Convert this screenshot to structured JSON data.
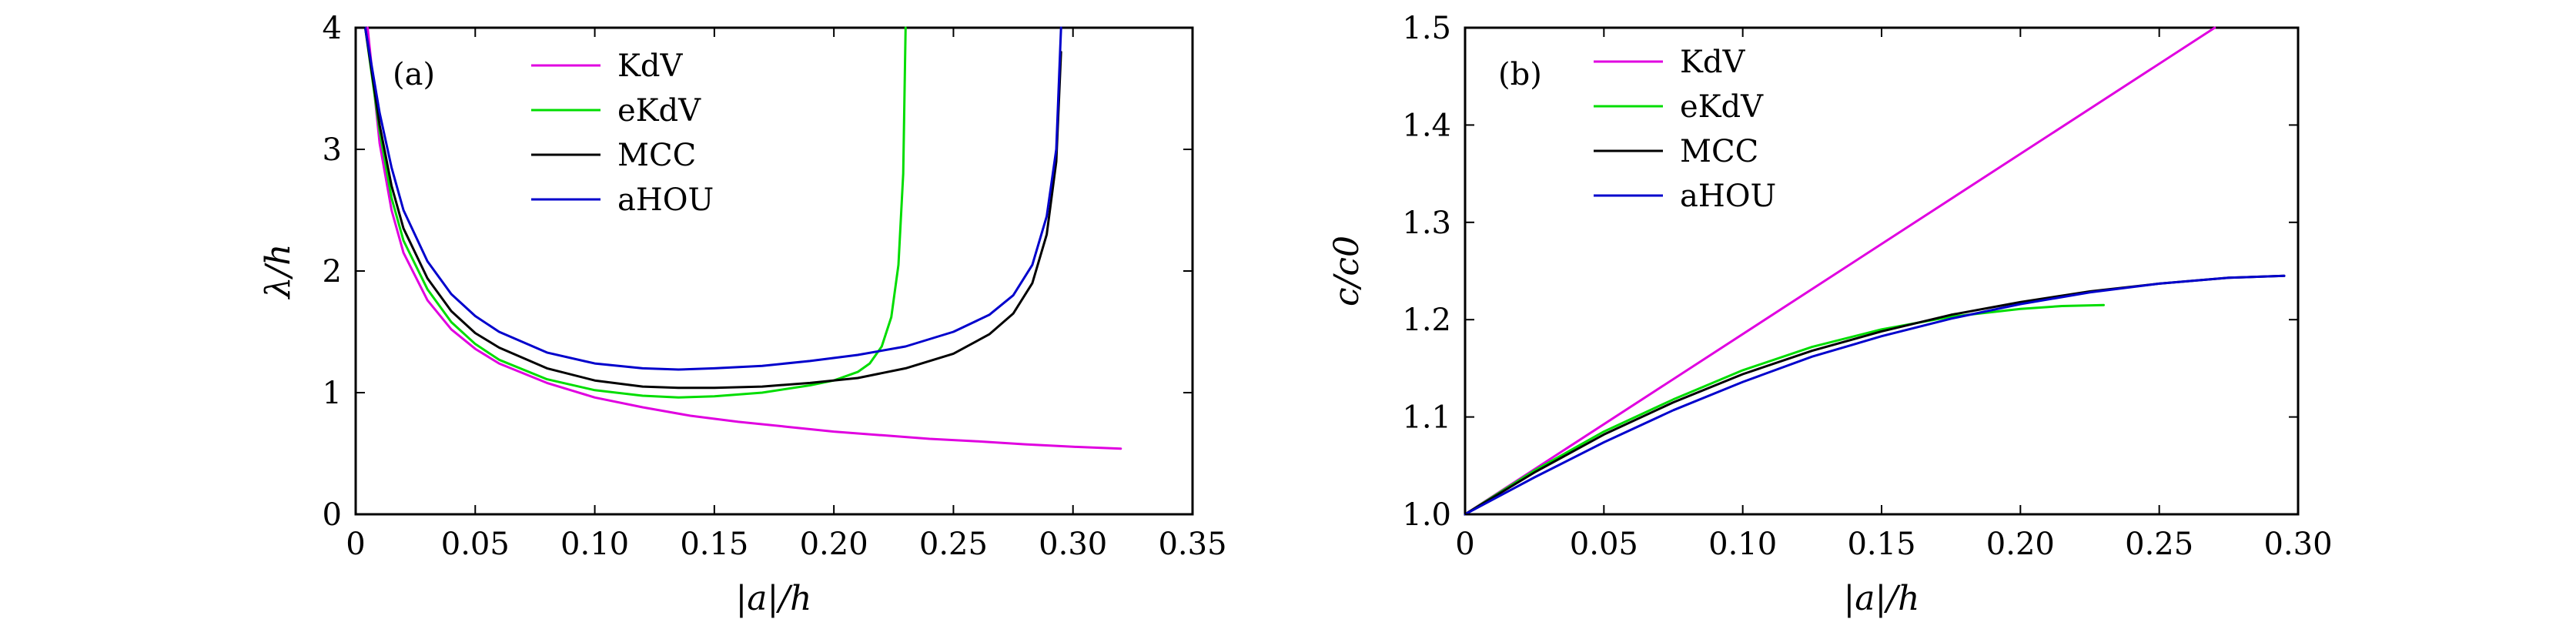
{
  "chart_data": [
    {
      "panel": "(a)",
      "type": "line",
      "xlabel": "|a|/h",
      "ylabel": "λ/h",
      "xlim": [
        0,
        0.35
      ],
      "ylim": [
        0,
        4
      ],
      "xticks": [
        "0",
        "0.05",
        "0.10",
        "0.15",
        "0.20",
        "0.25",
        "0.30",
        "0.35"
      ],
      "yticks": [
        "0",
        "1",
        "2",
        "3",
        "4"
      ],
      "grid": false,
      "legend_position": "top-center",
      "series": [
        {
          "name": "KdV",
          "color": "#e000e0",
          "points": [
            [
              0.005,
              4.0
            ],
            [
              0.01,
              3.05
            ],
            [
              0.015,
              2.5
            ],
            [
              0.02,
              2.15
            ],
            [
              0.03,
              1.76
            ],
            [
              0.04,
              1.52
            ],
            [
              0.05,
              1.36
            ],
            [
              0.06,
              1.24
            ],
            [
              0.08,
              1.08
            ],
            [
              0.1,
              0.96
            ],
            [
              0.12,
              0.88
            ],
            [
              0.14,
              0.81
            ],
            [
              0.16,
              0.76
            ],
            [
              0.18,
              0.72
            ],
            [
              0.2,
              0.68
            ],
            [
              0.22,
              0.65
            ],
            [
              0.24,
              0.62
            ],
            [
              0.26,
              0.6
            ],
            [
              0.28,
              0.575
            ],
            [
              0.3,
              0.555
            ],
            [
              0.32,
              0.54
            ]
          ]
        },
        {
          "name": "eKdV",
          "color": "#00dd00",
          "points": [
            [
              0.004,
              4.0
            ],
            [
              0.01,
              3.15
            ],
            [
              0.015,
              2.6
            ],
            [
              0.02,
              2.25
            ],
            [
              0.03,
              1.85
            ],
            [
              0.04,
              1.58
            ],
            [
              0.05,
              1.4
            ],
            [
              0.06,
              1.27
            ],
            [
              0.08,
              1.11
            ],
            [
              0.1,
              1.02
            ],
            [
              0.12,
              0.975
            ],
            [
              0.135,
              0.96
            ],
            [
              0.15,
              0.97
            ],
            [
              0.17,
              1.0
            ],
            [
              0.19,
              1.06
            ],
            [
              0.2,
              1.1
            ],
            [
              0.21,
              1.17
            ],
            [
              0.215,
              1.24
            ],
            [
              0.22,
              1.38
            ],
            [
              0.224,
              1.62
            ],
            [
              0.227,
              2.05
            ],
            [
              0.229,
              2.8
            ],
            [
              0.23,
              4.0
            ]
          ]
        },
        {
          "name": "MCC",
          "color": "#000000",
          "points": [
            [
              0.004,
              4.0
            ],
            [
              0.01,
              3.2
            ],
            [
              0.015,
              2.7
            ],
            [
              0.02,
              2.35
            ],
            [
              0.03,
              1.94
            ],
            [
              0.04,
              1.67
            ],
            [
              0.05,
              1.49
            ],
            [
              0.06,
              1.37
            ],
            [
              0.08,
              1.2
            ],
            [
              0.1,
              1.1
            ],
            [
              0.12,
              1.05
            ],
            [
              0.135,
              1.04
            ],
            [
              0.15,
              1.04
            ],
            [
              0.17,
              1.05
            ],
            [
              0.19,
              1.08
            ],
            [
              0.21,
              1.12
            ],
            [
              0.23,
              1.2
            ],
            [
              0.25,
              1.32
            ],
            [
              0.265,
              1.48
            ],
            [
              0.275,
              1.65
            ],
            [
              0.283,
              1.9
            ],
            [
              0.289,
              2.3
            ],
            [
              0.293,
              2.9
            ],
            [
              0.295,
              3.8
            ]
          ]
        },
        {
          "name": "aHOU",
          "color": "#0000cc",
          "points": [
            [
              0.004,
              4.0
            ],
            [
              0.01,
              3.3
            ],
            [
              0.015,
              2.85
            ],
            [
              0.02,
              2.5
            ],
            [
              0.03,
              2.08
            ],
            [
              0.04,
              1.81
            ],
            [
              0.05,
              1.63
            ],
            [
              0.06,
              1.5
            ],
            [
              0.08,
              1.33
            ],
            [
              0.1,
              1.24
            ],
            [
              0.12,
              1.2
            ],
            [
              0.135,
              1.19
            ],
            [
              0.15,
              1.2
            ],
            [
              0.17,
              1.22
            ],
            [
              0.19,
              1.26
            ],
            [
              0.21,
              1.31
            ],
            [
              0.23,
              1.38
            ],
            [
              0.25,
              1.5
            ],
            [
              0.265,
              1.64
            ],
            [
              0.275,
              1.8
            ],
            [
              0.283,
              2.05
            ],
            [
              0.289,
              2.45
            ],
            [
              0.293,
              3.0
            ],
            [
              0.295,
              4.0
            ]
          ]
        }
      ]
    },
    {
      "panel": "(b)",
      "type": "line",
      "xlabel": "|a|/h",
      "ylabel": "c/c0",
      "xlim": [
        0,
        0.3
      ],
      "ylim": [
        1.0,
        1.5
      ],
      "xticks": [
        "0",
        "0.05",
        "0.10",
        "0.15",
        "0.20",
        "0.25",
        "0.30"
      ],
      "yticks": [
        "1.0",
        "1.1",
        "1.2",
        "1.3",
        "1.4",
        "1.5"
      ],
      "grid": false,
      "legend_position": "top-left",
      "series": [
        {
          "name": "KdV",
          "color": "#e000e0",
          "points": [
            [
              0,
              1.0
            ],
            [
              0.27,
              1.5
            ]
          ]
        },
        {
          "name": "eKdV",
          "color": "#00dd00",
          "points": [
            [
              0,
              1.0
            ],
            [
              0.025,
              1.045
            ],
            [
              0.05,
              1.085
            ],
            [
              0.075,
              1.118
            ],
            [
              0.1,
              1.148
            ],
            [
              0.125,
              1.172
            ],
            [
              0.15,
              1.19
            ],
            [
              0.175,
              1.203
            ],
            [
              0.2,
              1.211
            ],
            [
              0.215,
              1.214
            ],
            [
              0.23,
              1.215
            ]
          ]
        },
        {
          "name": "MCC",
          "color": "#000000",
          "points": [
            [
              0,
              1.0
            ],
            [
              0.025,
              1.043
            ],
            [
              0.05,
              1.082
            ],
            [
              0.075,
              1.115
            ],
            [
              0.1,
              1.144
            ],
            [
              0.125,
              1.168
            ],
            [
              0.15,
              1.188
            ],
            [
              0.175,
              1.205
            ],
            [
              0.2,
              1.218
            ],
            [
              0.225,
              1.229
            ],
            [
              0.25,
              1.237
            ],
            [
              0.275,
              1.243
            ],
            [
              0.295,
              1.245
            ]
          ]
        },
        {
          "name": "aHOU",
          "color": "#0000cc",
          "points": [
            [
              0,
              1.0
            ],
            [
              0.025,
              1.038
            ],
            [
              0.05,
              1.074
            ],
            [
              0.075,
              1.107
            ],
            [
              0.1,
              1.136
            ],
            [
              0.125,
              1.162
            ],
            [
              0.15,
              1.183
            ],
            [
              0.175,
              1.201
            ],
            [
              0.2,
              1.216
            ],
            [
              0.225,
              1.228
            ],
            [
              0.25,
              1.237
            ],
            [
              0.275,
              1.243
            ],
            [
              0.295,
              1.245
            ]
          ]
        }
      ]
    }
  ]
}
